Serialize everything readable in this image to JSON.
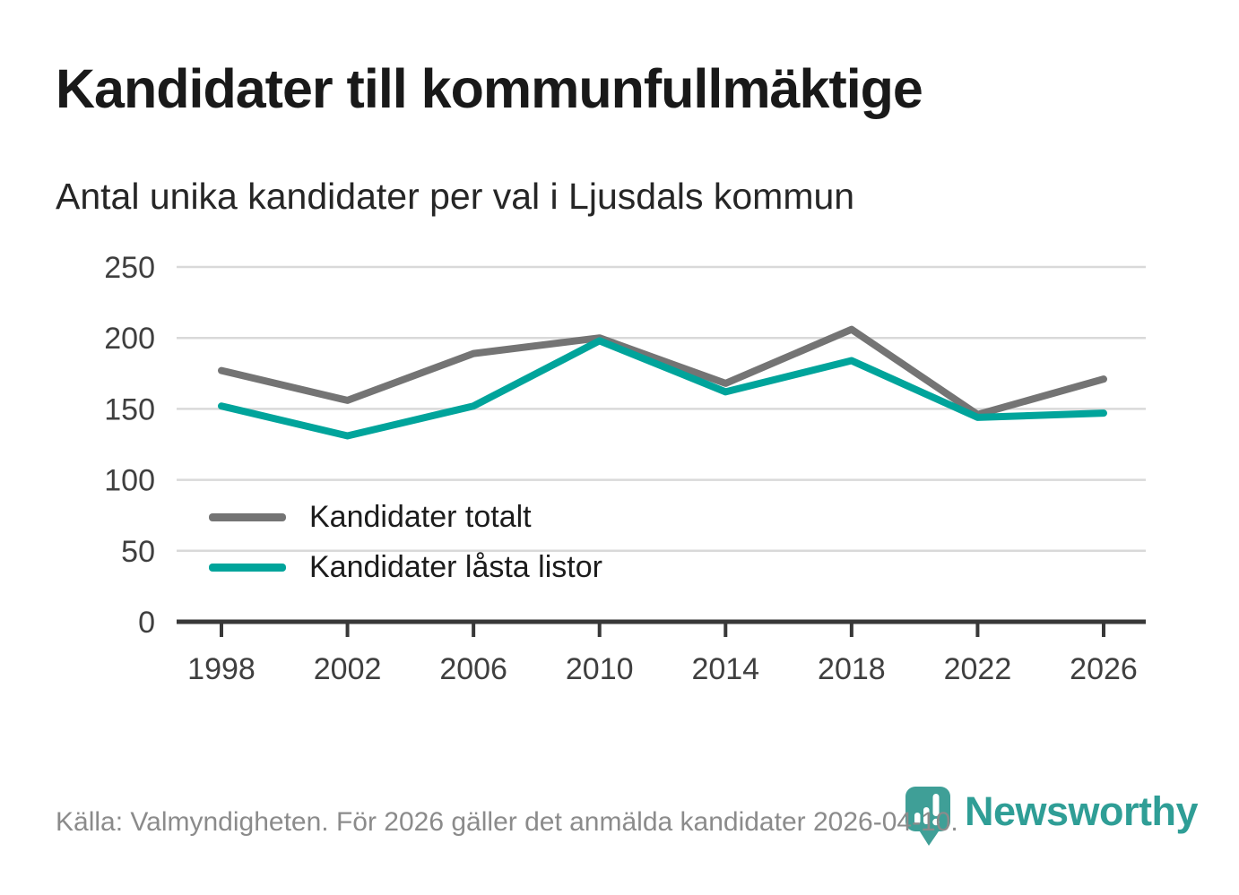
{
  "header": {
    "title": "Kandidater till kommunfullmäktige",
    "subtitle": "Antal unika kandidater per val i Ljusdals kommun"
  },
  "chart_data": {
    "type": "line",
    "categories": [
      "1998",
      "2002",
      "2006",
      "2010",
      "2014",
      "2018",
      "2022",
      "2026"
    ],
    "series": [
      {
        "name": "Kandidater totalt",
        "color": "#747474",
        "values": [
          177,
          156,
          189,
          200,
          168,
          206,
          146,
          171
        ]
      },
      {
        "name": "Kandidater låsta listor",
        "color": "#00a49b",
        "values": [
          152,
          131,
          152,
          198,
          162,
          184,
          144,
          147
        ]
      }
    ],
    "title": "Kandidater till kommunfullmäktige",
    "subtitle": "Antal unika kandidater per val i Ljusdals kommun",
    "xlabel": "",
    "ylabel": "",
    "ylim": [
      0,
      250
    ],
    "yticks": [
      0,
      50,
      100,
      150,
      200,
      250
    ],
    "grid": "horizontal",
    "legend_position": "inside-bottom-left",
    "gridline_color": "#d9d9d9",
    "axis_color": "#383838",
    "tick_label_color": "#3f3f3f"
  },
  "footer": {
    "source": "Källa: Valmyndigheten. För 2026 gäller det anmälda kandidater 2026-04-10.",
    "brand": "Newsworthy",
    "brand_color": "#2f9e96",
    "logo_icon": "bar-chart-pin-icon"
  }
}
